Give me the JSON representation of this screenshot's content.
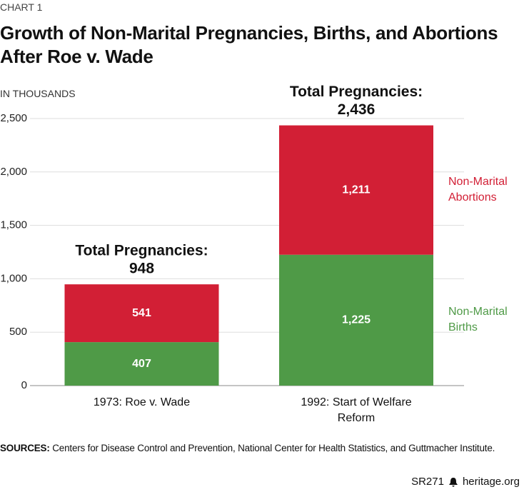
{
  "label": "CHART 1",
  "chart_data": {
    "type": "stacked-bar",
    "title": "Growth of Non-Marital Pregnancies, Births, and Abortions After Roe v. Wade",
    "y_label": "IN THOUSANDS",
    "categories": [
      "1973: Roe v. Wade",
      "1992: Start of Welfare Reform"
    ],
    "series": [
      {
        "name": "Non-Marital Births",
        "color": "#4f9a47",
        "values": [
          407,
          1225
        ],
        "value_labels": [
          "407",
          "1,225"
        ]
      },
      {
        "name": "Non-Marital Abortions",
        "color": "#d21f35",
        "values": [
          541,
          1211
        ],
        "value_labels": [
          "541",
          "1,211"
        ]
      }
    ],
    "total_label": "Total Pregnancies:",
    "totals": [
      948,
      2436
    ],
    "total_value_labels": [
      "948",
      "2,436"
    ],
    "ylim": [
      0,
      2500
    ],
    "yticks": [
      0,
      500,
      {
        "value": 1000,
        "label": "1,000"
      },
      {
        "value": 1500,
        "label": "1,500"
      },
      {
        "value": 2000,
        "label": "2,000"
      },
      {
        "value": 2500,
        "label": "2,500"
      }
    ],
    "grid": true
  },
  "sources_label": "SOURCES:",
  "sources": "Centers for Disease Control and Prevention, National Center for Health Statistics, and Guttmacher Institute.",
  "footer": {
    "code": "SR271",
    "site": "heritage.org"
  }
}
